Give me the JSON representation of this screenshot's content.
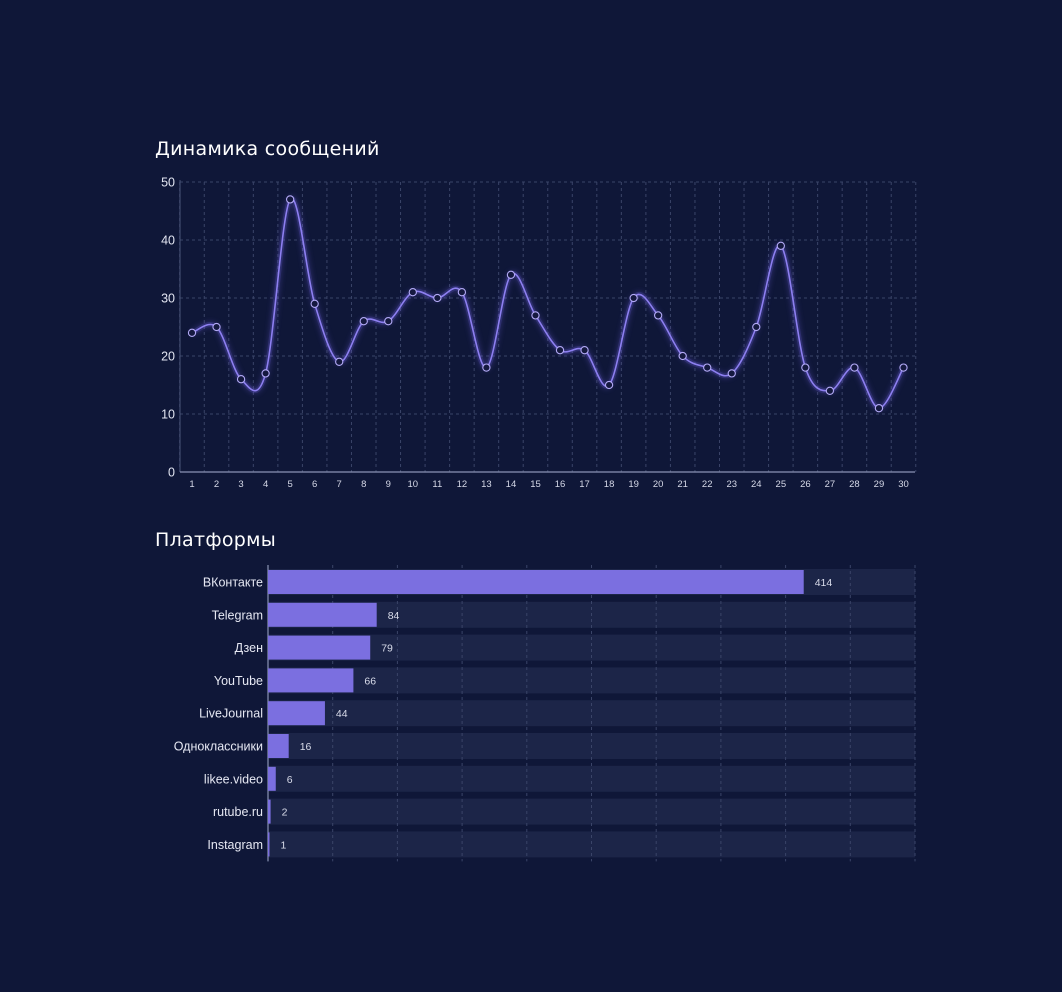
{
  "colors": {
    "background": "#0f1738",
    "accent": "#7b6fe0",
    "line": "#8d7ff0",
    "track": "#1c2548",
    "grid": "#3a4468"
  },
  "chart_data": [
    {
      "type": "line",
      "title": "Динамика сообщений",
      "xlabel": "",
      "ylabel": "",
      "x": [
        1,
        2,
        3,
        4,
        5,
        6,
        7,
        8,
        9,
        10,
        11,
        12,
        13,
        14,
        15,
        16,
        17,
        18,
        19,
        20,
        21,
        22,
        23,
        24,
        25,
        26,
        27,
        28,
        29,
        30
      ],
      "x_tick_labels": [
        "1",
        "2",
        "3",
        "4",
        "5",
        "6",
        "7",
        "8",
        "9",
        "10",
        "11",
        "12",
        "13",
        "14",
        "15",
        "16",
        "17",
        "18",
        "19",
        "20",
        "21",
        "22",
        "23",
        "24",
        "25",
        "26",
        "27",
        "28",
        "29",
        "30"
      ],
      "values": [
        24,
        25,
        16,
        17,
        47,
        29,
        19,
        26,
        26,
        31,
        30,
        31,
        18,
        34,
        27,
        21,
        21,
        15,
        30,
        27,
        20,
        18,
        17,
        25,
        39,
        18,
        14,
        18,
        11,
        18
      ],
      "ylim": [
        0,
        50
      ],
      "y_ticks": [
        0,
        10,
        20,
        30,
        40,
        50
      ],
      "y_tick_labels": [
        "0",
        "10",
        "20",
        "30",
        "40",
        "50"
      ],
      "grid": true
    },
    {
      "type": "bar",
      "orientation": "horizontal",
      "title": "Платформы",
      "categories": [
        "ВКонтакте",
        "Telegram",
        "Дзен",
        "YouTube",
        "LiveJournal",
        "Одноклассники",
        "likee.video",
        "rutube.ru",
        "Instagram"
      ],
      "values": [
        414,
        84,
        79,
        66,
        44,
        16,
        6,
        2,
        1
      ],
      "value_labels": [
        "414",
        "84",
        "79",
        "66",
        "44",
        "16",
        "6",
        "2",
        "1"
      ],
      "xlim": [
        0,
        500
      ],
      "grid": true
    }
  ]
}
